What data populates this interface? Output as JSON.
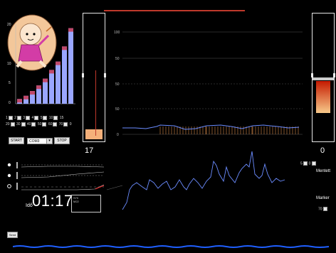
{
  "app": {
    "left_tube_value": "17",
    "right_tube_value": "0",
    "timer": {
      "prefix": "Idő",
      "value": "01:17"
    },
    "info_box": {
      "line1": "S70",
      "line2": "M22"
    }
  },
  "left_chart": {
    "y_ticks": [
      "20",
      "10",
      "5",
      "0"
    ],
    "bars": [
      1.2,
      2,
      3.2,
      4.6,
      6.3,
      8.5,
      10.6,
      14.4,
      19.0
    ],
    "ymax": 20
  },
  "checkbox_rows": [
    [
      "1",
      "2",
      "3",
      "4",
      "5",
      "10",
      "15"
    ],
    [
      "20",
      "30",
      "40",
      "50",
      "60",
      "70",
      "0"
    ]
  ],
  "controls": {
    "start_label": "START",
    "port_value": "COM3",
    "stop_label": "STOP",
    "send_label": "Send"
  },
  "main_chart": {
    "y_ticks": [
      "100",
      "50",
      "50",
      "50",
      "0"
    ]
  },
  "right_panel": {
    "row_values": [
      "5",
      "0"
    ],
    "save_label": "Mentett",
    "marker_label": "Marker",
    "marker_value": "70"
  },
  "mini_rows": {
    "count": 3
  },
  "colors": {
    "bar_fill": "#9aa6ff",
    "bar_marker": "#c0496b",
    "left_tube_fill": "#f5b07a",
    "right_tube_top": "#c51a00",
    "right_tube_bottom": "#f7c98a",
    "signal": "#6b8cff",
    "orange_marks": "#d98a4a",
    "top_red_line": "#c0392b",
    "bottom_wave": "#1f5fff"
  }
}
